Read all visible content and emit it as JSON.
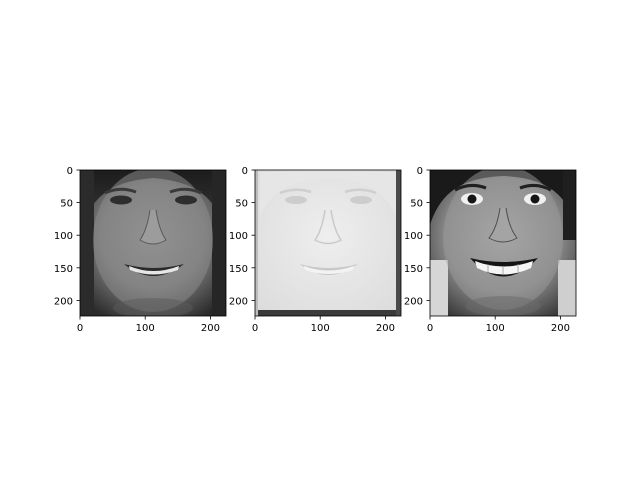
{
  "figure": {
    "background": "#ffffff",
    "panels": [
      {
        "type": "image",
        "image_description": "grayscale face photo, darker contrast",
        "tone": "dark",
        "xlim": [
          0,
          224
        ],
        "ylim": [
          224,
          0
        ],
        "xticks": [
          0,
          100,
          200
        ],
        "yticks": [
          0,
          50,
          100,
          150,
          200
        ]
      },
      {
        "type": "image",
        "image_description": "grayscale face photo, very light / washed out, dark bottom border",
        "tone": "light",
        "xlim": [
          0,
          224
        ],
        "ylim": [
          224,
          0
        ],
        "xticks": [
          0,
          100,
          200
        ],
        "yticks": [
          0,
          50,
          100,
          150,
          200
        ]
      },
      {
        "type": "image",
        "image_description": "grayscale face photo, exaggerated smile, high contrast",
        "tone": "contrast",
        "xlim": [
          0,
          224
        ],
        "ylim": [
          224,
          0
        ],
        "xticks": [
          0,
          100,
          200
        ],
        "yticks": [
          0,
          50,
          100,
          150,
          200
        ]
      }
    ]
  },
  "chart_data": [
    {
      "type": "image",
      "title": "",
      "xlabel": "",
      "ylabel": "",
      "xlim": [
        0,
        224
      ],
      "ylim": [
        224,
        0
      ],
      "xticks": [
        0,
        100,
        200
      ],
      "yticks": [
        0,
        50,
        100,
        150,
        200
      ],
      "grid": false
    },
    {
      "type": "image",
      "title": "",
      "xlabel": "",
      "ylabel": "",
      "xlim": [
        0,
        224
      ],
      "ylim": [
        224,
        0
      ],
      "xticks": [
        0,
        100,
        200
      ],
      "yticks": [
        0,
        50,
        100,
        150,
        200
      ],
      "grid": false
    },
    {
      "type": "image",
      "title": "",
      "xlabel": "",
      "ylabel": "",
      "xlim": [
        0,
        224
      ],
      "ylim": [
        224,
        0
      ],
      "xticks": [
        0,
        100,
        200
      ],
      "yticks": [
        0,
        50,
        100,
        150,
        200
      ],
      "grid": false
    }
  ]
}
